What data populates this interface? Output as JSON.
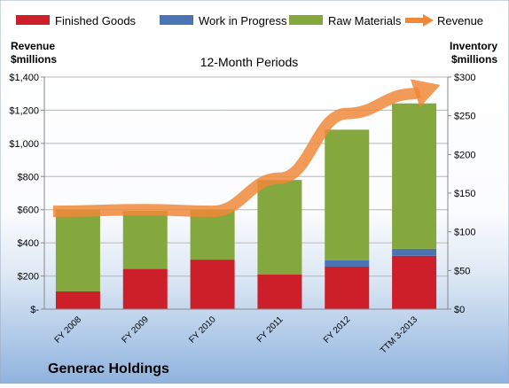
{
  "chart_data": {
    "type": "bar",
    "stacked": true,
    "subtitle": "12-Month Periods",
    "company": "Generac Holdings",
    "y_left_label": [
      "Revenue",
      "$millions"
    ],
    "y_right_label": [
      "Inventory",
      "$millions"
    ],
    "categories": [
      "FY 2008",
      "FY 2009",
      "FY 2010",
      "FY 2011",
      "FY 2012",
      "TTM 3-2013"
    ],
    "y_left_ticks": [
      "$-",
      "$200",
      "$400",
      "$600",
      "$800",
      "$1,000",
      "$1,200",
      "$1,400"
    ],
    "y_right_ticks": [
      "$0",
      "$50",
      "$100",
      "$150",
      "$200",
      "$250",
      "$300"
    ],
    "y_left_lim": [
      0,
      1400
    ],
    "y_right_lim": [
      0,
      300
    ],
    "series": [
      {
        "name": "Finished Goods",
        "axis": "right",
        "color": "#cc1f2a",
        "values": [
          23,
          52,
          64,
          45,
          55,
          69
        ]
      },
      {
        "name": "Work in Progress",
        "axis": "right",
        "color": "#4a74b4",
        "values": [
          0,
          0,
          0,
          0,
          8,
          9
        ]
      },
      {
        "name": "Raw Materials",
        "axis": "right",
        "color": "#84a83e",
        "values": [
          106,
          75,
          65,
          122,
          169,
          188
        ]
      },
      {
        "name": "Revenue",
        "axis": "left",
        "type": "line",
        "color": "#f0883a",
        "values": [
          590,
          600,
          590,
          790,
          1180,
          1300
        ]
      }
    ],
    "legend_position": "top",
    "grid": true
  }
}
